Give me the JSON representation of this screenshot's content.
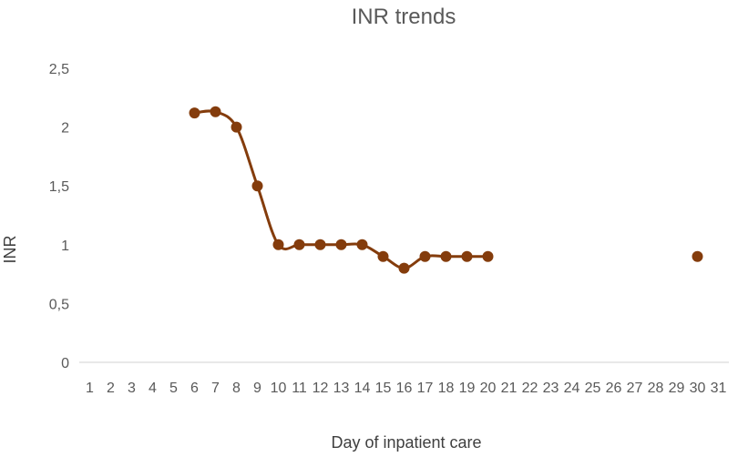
{
  "chart_data": {
    "type": "line",
    "title": "INR trends",
    "xlabel": "Day of inpatient care",
    "ylabel": "INR",
    "categories": [
      "1",
      "2",
      "3",
      "4",
      "5",
      "6",
      "7",
      "8",
      "9",
      "10",
      "11",
      "12",
      "13",
      "14",
      "15",
      "16",
      "17",
      "18",
      "19",
      "20",
      "21",
      "22",
      "23",
      "24",
      "25",
      "26",
      "27",
      "28",
      "29",
      "30",
      "31"
    ],
    "ylim": [
      0,
      2.5
    ],
    "yticks": [
      "0",
      "0,5",
      "1",
      "1,5",
      "2",
      "2,5"
    ],
    "grid": false,
    "smooth": true,
    "series_color": "#843c0c",
    "series": [
      {
        "values": [
          null,
          null,
          null,
          null,
          null,
          2.12,
          2.13,
          2.0,
          1.5,
          1.0,
          1.0,
          1.0,
          1.0,
          1.0,
          0.9,
          0.8,
          0.9,
          0.9,
          0.9,
          0.9,
          null,
          null,
          null,
          null,
          null,
          null,
          null,
          null,
          null,
          0.9,
          null
        ]
      }
    ]
  }
}
